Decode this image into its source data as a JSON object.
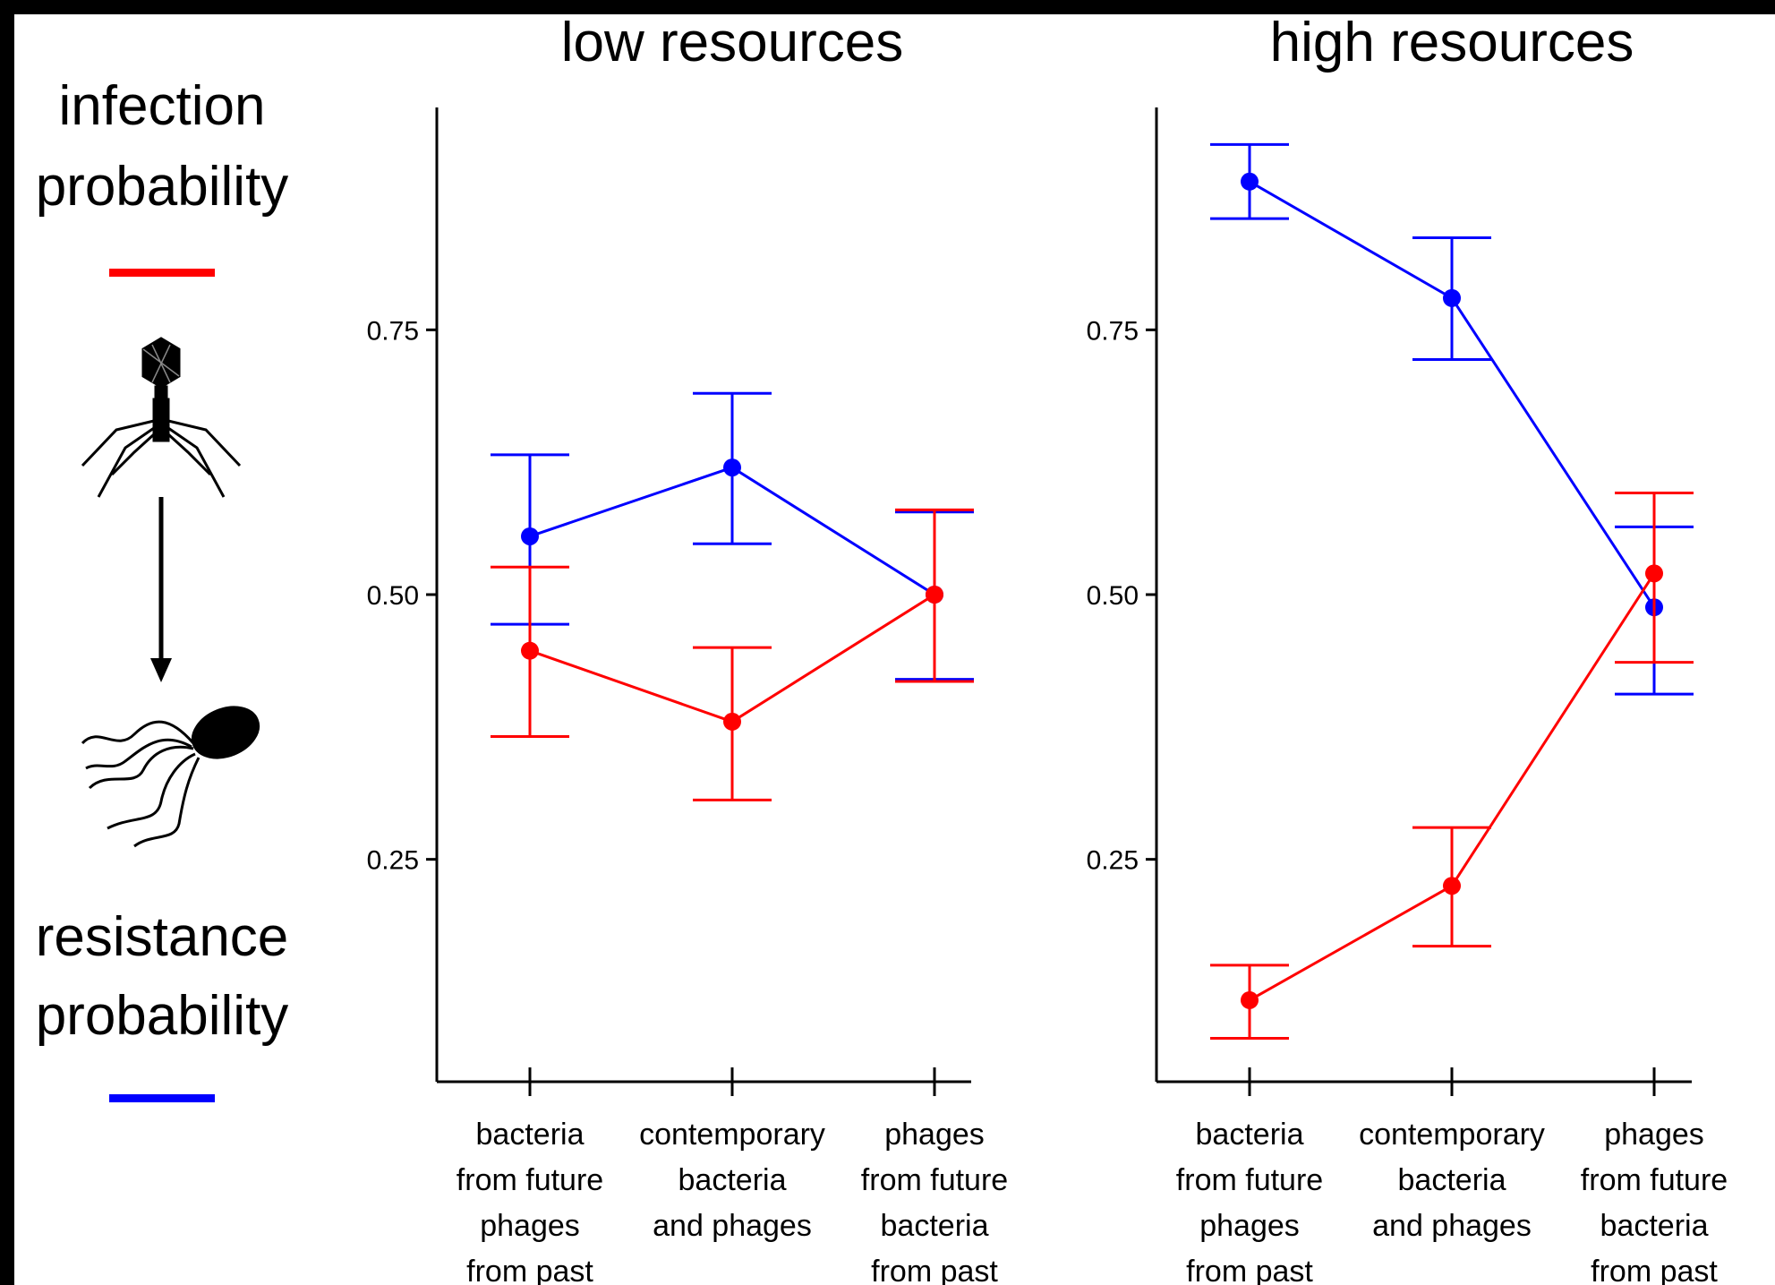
{
  "legend": {
    "infection": {
      "line1": "infection",
      "line2": "probability",
      "color": "#ff0000"
    },
    "resistance": {
      "line1": "resistance",
      "line2": "probability",
      "color": "#0000ff"
    },
    "icons": [
      "phage-icon",
      "down-arrow-icon",
      "bacterium-icon"
    ]
  },
  "chart_data": [
    {
      "type": "line",
      "title": "low resources",
      "categories": [
        [
          "bacteria",
          "from future",
          "phages",
          "from past"
        ],
        [
          "contemporary",
          "bacteria",
          "and phages"
        ],
        [
          "phages",
          "from future",
          "bacteria",
          "from past"
        ]
      ],
      "yticks": [
        "0.25",
        "0.50",
        "0.75"
      ],
      "ylim": [
        0.04,
        0.96
      ],
      "series": [
        {
          "color": "#0000ff",
          "values": [
            0.555,
            0.62,
            0.5
          ],
          "lower": [
            0.472,
            0.548,
            0.42
          ],
          "upper": [
            0.632,
            0.69,
            0.578
          ]
        },
        {
          "color": "#ff0000",
          "values": [
            0.447,
            0.38,
            0.5
          ],
          "lower": [
            0.366,
            0.306,
            0.418
          ],
          "upper": [
            0.526,
            0.45,
            0.58
          ]
        }
      ]
    },
    {
      "type": "line",
      "title": "high resources",
      "categories": [
        [
          "bacteria",
          "from future",
          "phages",
          "from past"
        ],
        [
          "contemporary",
          "bacteria",
          "and phages"
        ],
        [
          "phages",
          "from future",
          "bacteria",
          "from past"
        ]
      ],
      "yticks": [
        "0.25",
        "0.50",
        "0.75"
      ],
      "ylim": [
        0.04,
        0.96
      ],
      "series": [
        {
          "color": "#0000ff",
          "values": [
            0.89,
            0.78,
            0.488
          ],
          "lower": [
            0.855,
            0.722,
            0.406
          ],
          "upper": [
            0.925,
            0.837,
            0.564
          ]
        },
        {
          "color": "#ff0000",
          "values": [
            0.117,
            0.225,
            0.52
          ],
          "lower": [
            0.081,
            0.168,
            0.436
          ],
          "upper": [
            0.15,
            0.28,
            0.596
          ]
        }
      ]
    }
  ]
}
